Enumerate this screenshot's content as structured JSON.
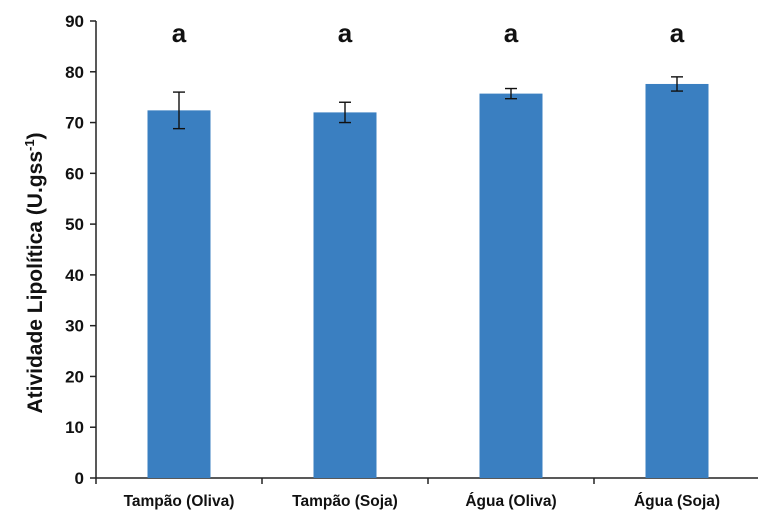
{
  "chart_data": {
    "type": "bar",
    "title": "",
    "xlabel": "",
    "ylabel": {
      "text": "Atividade Lipolítica (U.gss",
      "sup": "-1",
      "close": ")"
    },
    "ylim": [
      0,
      90
    ],
    "yticks": [
      0,
      10,
      20,
      30,
      40,
      50,
      60,
      70,
      80,
      90
    ],
    "grid": false,
    "categories": [
      "Tampão (Oliva)",
      "Tampão (Soja)",
      "Água (Oliva)",
      "Água (Soja)"
    ],
    "values": [
      72.4,
      72.0,
      75.7,
      77.6
    ],
    "errors": [
      3.6,
      2.0,
      1.0,
      1.4
    ],
    "significance_letters": [
      "a",
      "a",
      "a",
      "a"
    ],
    "colors": {
      "bar": "#3a7fc1",
      "axis": "#222222",
      "error": "#111111"
    }
  }
}
